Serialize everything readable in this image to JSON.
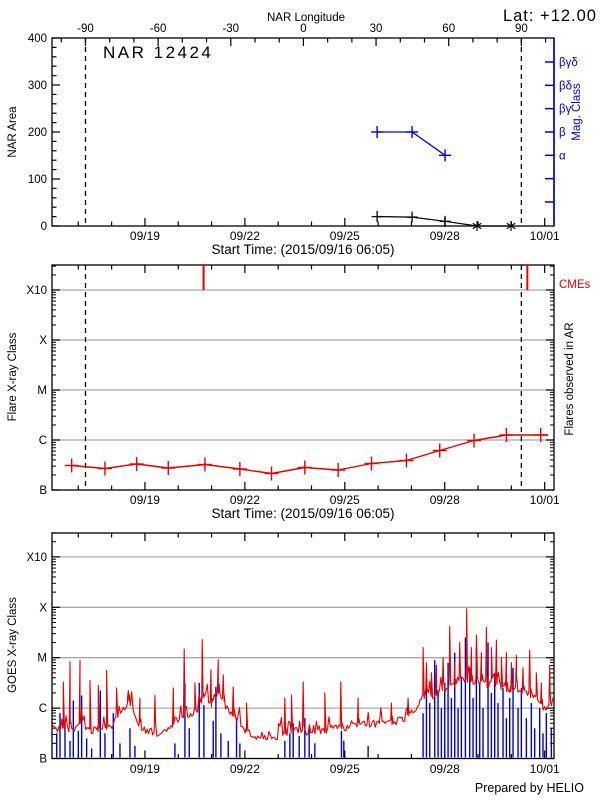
{
  "header": {
    "lat_label": "Lat: +12.00",
    "top_axis_label": "NAR Longitude"
  },
  "footer": {
    "credit": "Prepared by HELIO"
  },
  "colors": {
    "red": "#e60000",
    "blue": "#0000dd",
    "grid": "#a8a8a8",
    "axis": "#000000"
  },
  "time_axis": {
    "time_unit": "days since 2015/09/16 00:00 UT",
    "range_days": [
      0.21,
      15.28
    ],
    "tick_days": [
      3,
      6,
      9,
      12,
      15
    ],
    "tick_labels": [
      "09/19",
      "09/22",
      "09/25",
      "09/28",
      "10/01"
    ],
    "minor_tick_every_days": 1,
    "xlabel": "Start Time: (2015/09/16 06:05)",
    "limb_crossing_days": [
      1.215,
      14.3
    ]
  },
  "chart_data": [
    {
      "id": "nar-area-panel",
      "type": "line",
      "title": "NAR 12424",
      "ylabel": "NAR Area",
      "ylim": [
        0,
        400
      ],
      "yticks": [
        0,
        100,
        200,
        300,
        400
      ],
      "y_minor_step": 20,
      "top_axis": {
        "ticks_deg": [
          -90,
          -60,
          -30,
          0,
          30,
          60,
          90
        ],
        "minor_step_deg": 10,
        "deg_at_limbs": [
          -90,
          90
        ]
      },
      "right_axis": {
        "label": "Mag. Class",
        "labels_top_to_bottom": [
          "βγδ",
          "βδ",
          "βγ",
          "β",
          "α",
          "",
          ""
        ]
      },
      "series": [
        {
          "name": "nar-area",
          "color": "black",
          "points": [
            {
              "t": 9.97,
              "area": 20,
              "marker": "plus"
            },
            {
              "t": 11.02,
              "area": 19,
              "marker": "plus"
            },
            {
              "t": 12.01,
              "area": 10,
              "marker": "plus"
            },
            {
              "t": 12.97,
              "area": 0,
              "marker": "asterisk"
            },
            {
              "t": 13.99,
              "area": 0,
              "marker": "asterisk"
            }
          ]
        },
        {
          "name": "mag-class",
          "color": "blue",
          "points": [
            {
              "t": 9.97,
              "class": "β"
            },
            {
              "t": 11.02,
              "class": "β"
            },
            {
              "t": 12.01,
              "class": "α"
            }
          ]
        }
      ]
    },
    {
      "id": "flares-panel",
      "type": "line",
      "ylabel": "Flare X-ray Class",
      "right_label": "Flares observed in AR",
      "ylabels_bottom_to_top": [
        "B",
        "C",
        "M",
        "X",
        "X10"
      ],
      "y_log_decades": [
        0,
        4.5
      ],
      "cme": {
        "label": "CMEs",
        "times_days": [
          4.76,
          14.48
        ]
      },
      "flare_series": {
        "unit": "decades above B (1e-7 W/m^2)",
        "t": [
          0.8,
          1.8,
          2.75,
          3.7,
          4.8,
          5.85,
          6.8,
          7.8,
          8.8,
          9.8,
          10.85,
          11.85,
          12.88,
          13.85,
          14.88
        ],
        "class_log": [
          0.49,
          0.43,
          0.52,
          0.44,
          0.51,
          0.42,
          0.33,
          0.45,
          0.4,
          0.53,
          0.59,
          0.79,
          0.99,
          1.1,
          1.1
        ],
        "class_labels": [
          "B3.1",
          "B2.7",
          "B3.3",
          "B2.8",
          "B3.2",
          "B2.6",
          "B2.1",
          "B2.8",
          "B2.5",
          "B3.4",
          "B3.9",
          "B6.2",
          "C1.0",
          "C1.3",
          "C1.3"
        ]
      }
    },
    {
      "id": "goes-panel",
      "type": "line",
      "ylabel": "GOES X-ray Class",
      "ylabels_bottom_to_top": [
        "B",
        "C",
        "M",
        "X",
        "X10"
      ],
      "y_log_decades": [
        0,
        4.49
      ],
      "xray_background": {
        "unit": "decades above B (1e-7 W/m^2)",
        "points": [
          [
            0.21,
            0.6
          ],
          [
            0.5,
            0.55
          ],
          [
            0.8,
            0.6
          ],
          [
            1.1,
            0.65
          ],
          [
            1.4,
            0.55
          ],
          [
            1.7,
            0.6
          ],
          [
            2.0,
            0.65
          ],
          [
            2.3,
            0.9
          ],
          [
            2.5,
            1.15
          ],
          [
            2.65,
            0.9
          ],
          [
            2.9,
            0.6
          ],
          [
            3.2,
            0.5
          ],
          [
            3.5,
            0.52
          ],
          [
            3.8,
            0.6
          ],
          [
            4.0,
            0.7
          ],
          [
            4.2,
            0.9
          ],
          [
            4.4,
            0.85
          ],
          [
            4.6,
            1.0
          ],
          [
            4.8,
            1.3
          ],
          [
            5.0,
            1.05
          ],
          [
            5.2,
            1.35
          ],
          [
            5.45,
            1.0
          ],
          [
            5.6,
            0.9
          ],
          [
            5.8,
            0.75
          ],
          [
            6.0,
            0.55
          ],
          [
            6.3,
            0.45
          ],
          [
            6.6,
            0.42
          ],
          [
            6.9,
            0.4
          ],
          [
            7.2,
            0.5
          ],
          [
            7.5,
            0.55
          ],
          [
            7.8,
            0.5
          ],
          [
            8.1,
            0.48
          ],
          [
            8.4,
            0.55
          ],
          [
            8.7,
            0.6
          ],
          [
            9.0,
            0.6
          ],
          [
            9.3,
            0.65
          ],
          [
            9.6,
            0.7
          ],
          [
            9.9,
            0.68
          ],
          [
            10.2,
            0.7
          ],
          [
            10.5,
            0.72
          ],
          [
            10.8,
            0.78
          ],
          [
            11.1,
            0.9
          ],
          [
            11.3,
            1.2
          ],
          [
            11.5,
            1.25
          ],
          [
            11.7,
            1.2
          ],
          [
            11.9,
            1.35
          ],
          [
            12.1,
            1.4
          ],
          [
            12.3,
            1.45
          ],
          [
            12.5,
            1.5
          ],
          [
            12.7,
            1.55
          ],
          [
            12.9,
            1.5
          ],
          [
            13.1,
            1.55
          ],
          [
            13.3,
            1.45
          ],
          [
            13.5,
            1.5
          ],
          [
            13.7,
            1.42
          ],
          [
            13.9,
            1.38
          ],
          [
            14.1,
            1.4
          ],
          [
            14.3,
            1.32
          ],
          [
            14.5,
            1.3
          ],
          [
            14.7,
            1.22
          ],
          [
            14.9,
            1.05
          ],
          [
            15.05,
            0.95
          ],
          [
            15.15,
            1.0
          ],
          [
            15.28,
            1.25
          ]
        ],
        "noise_amplitude": 0.07,
        "microflare_probability": 0.2,
        "microflare_max": 0.3
      },
      "flare_spikes_red": [
        [
          0.55,
          1.52
        ],
        [
          0.75,
          1.92
        ],
        [
          1.05,
          1.95
        ],
        [
          1.35,
          1.55
        ],
        [
          1.6,
          1.45
        ],
        [
          1.85,
          1.75
        ],
        [
          2.15,
          1.4
        ],
        [
          2.5,
          1.35
        ],
        [
          2.85,
          1.2
        ],
        [
          3.3,
          1.25
        ],
        [
          3.85,
          1.4
        ],
        [
          4.18,
          2.17
        ],
        [
          4.5,
          1.5
        ],
        [
          4.72,
          2.36
        ],
        [
          4.98,
          1.76
        ],
        [
          5.2,
          1.96
        ],
        [
          5.35,
          1.66
        ],
        [
          5.65,
          1.42
        ],
        [
          6.05,
          1.1
        ],
        [
          7.2,
          1.2
        ],
        [
          7.4,
          1.26
        ],
        [
          7.75,
          1.52
        ],
        [
          8.4,
          1.3
        ],
        [
          8.88,
          1.52
        ],
        [
          9.4,
          1.2
        ],
        [
          10.4,
          1.1
        ],
        [
          10.9,
          1.2
        ],
        [
          11.35,
          2.2
        ],
        [
          11.45,
          1.9
        ],
        [
          11.6,
          1.7
        ],
        [
          11.75,
          1.85
        ],
        [
          11.95,
          2.0
        ],
        [
          12.15,
          2.62
        ],
        [
          12.3,
          1.9
        ],
        [
          12.45,
          2.3
        ],
        [
          12.66,
          2.97
        ],
        [
          12.8,
          2.2
        ],
        [
          12.95,
          2.45
        ],
        [
          13.1,
          2.1
        ],
        [
          13.25,
          2.6
        ],
        [
          13.4,
          2.2
        ],
        [
          13.55,
          2.35
        ],
        [
          13.7,
          2.0
        ],
        [
          13.85,
          2.1
        ],
        [
          14.0,
          1.9
        ],
        [
          14.15,
          2.05
        ],
        [
          14.35,
          1.8
        ],
        [
          14.55,
          2.15
        ],
        [
          14.75,
          1.7
        ],
        [
          14.9,
          1.5
        ],
        [
          15.15,
          1.85
        ]
      ],
      "particle_spikes_blue": [
        [
          0.35,
          0.5
        ],
        [
          0.45,
          0.9
        ],
        [
          0.6,
          0.65
        ],
        [
          0.75,
          0.35
        ],
        [
          0.85,
          1.15
        ],
        [
          1.0,
          0.55
        ],
        [
          1.1,
          1.25
        ],
        [
          1.25,
          0.4
        ],
        [
          1.4,
          0.2
        ],
        [
          1.66,
          1.35
        ],
        [
          1.8,
          0.5
        ],
        [
          2.05,
          0.9
        ],
        [
          2.25,
          0.3
        ],
        [
          2.55,
          0.6
        ],
        [
          2.7,
          0.25
        ],
        [
          3.9,
          0.3
        ],
        [
          4.2,
          1.49
        ],
        [
          4.33,
          0.6
        ],
        [
          4.63,
          1.5
        ],
        [
          4.77,
          1.06
        ],
        [
          5.05,
          0.75
        ],
        [
          5.13,
          1.42
        ],
        [
          5.28,
          0.5
        ],
        [
          5.5,
          0.35
        ],
        [
          5.75,
          0.8
        ],
        [
          5.85,
          0.3
        ],
        [
          7.2,
          0.35
        ],
        [
          7.35,
          0.5
        ],
        [
          7.45,
          0.7
        ],
        [
          7.63,
          0.45
        ],
        [
          7.8,
          0.8
        ],
        [
          7.93,
          0.6
        ],
        [
          8.1,
          0.3
        ],
        [
          8.9,
          0.55
        ],
        [
          8.97,
          0.35
        ],
        [
          9.7,
          0.25
        ],
        [
          11.35,
          0.9
        ],
        [
          11.45,
          1.6
        ],
        [
          11.55,
          1.1
        ],
        [
          11.7,
          1.95
        ],
        [
          11.8,
          1.3
        ],
        [
          11.9,
          1.0
        ],
        [
          12.0,
          1.5
        ],
        [
          12.1,
          1.9
        ],
        [
          12.2,
          1.2
        ],
        [
          12.3,
          2.1
        ],
        [
          12.4,
          1.0
        ],
        [
          12.5,
          1.6
        ],
        [
          12.62,
          2.4
        ],
        [
          12.75,
          1.8
        ],
        [
          12.85,
          1.2
        ],
        [
          12.95,
          2.2
        ],
        [
          13.05,
          1.5
        ],
        [
          13.15,
          1.0
        ],
        [
          13.3,
          2.3
        ],
        [
          13.4,
          1.3
        ],
        [
          13.5,
          1.7
        ],
        [
          13.6,
          1.1
        ],
        [
          13.75,
          1.4
        ],
        [
          13.85,
          0.8
        ],
        [
          13.95,
          1.2
        ],
        [
          14.05,
          1.8
        ],
        [
          14.2,
          1.0
        ],
        [
          14.3,
          1.4
        ],
        [
          14.45,
          0.8
        ],
        [
          14.6,
          1.1
        ],
        [
          14.7,
          0.6
        ],
        [
          14.85,
          1.0
        ],
        [
          14.95,
          0.5
        ],
        [
          15.05,
          0.9
        ],
        [
          15.2,
          0.6
        ]
      ]
    }
  ]
}
